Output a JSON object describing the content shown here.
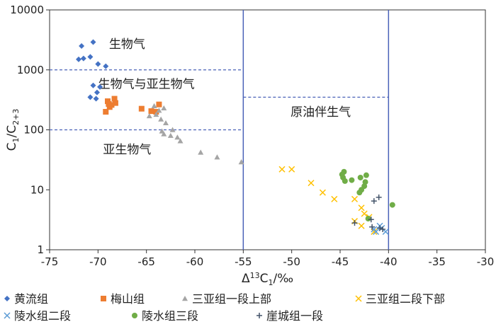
{
  "chart_data": {
    "type": "scatter",
    "xlabel": "Δ13C1/‰",
    "ylabel": "C1/C2+3",
    "xlim": [
      -75,
      -30
    ],
    "ylim": [
      1,
      10000
    ],
    "yscale": "log",
    "x_ticks": [
      "-75",
      "-70",
      "-65",
      "-60",
      "-55",
      "-50",
      "-45",
      "-40",
      "-35",
      "-30"
    ],
    "y_ticks": [
      "1",
      "10",
      "100",
      "1000",
      "10000"
    ],
    "grid": false,
    "legend_position": "bottom",
    "regions": [
      {
        "label": "生物气",
        "x": -67,
        "y": 2300
      },
      {
        "label": "生物气与亚生物气",
        "x": -65,
        "y": 500
      },
      {
        "label": "亚生物气",
        "x": -67,
        "y": 40
      },
      {
        "label": "原油伴生气",
        "x": -47,
        "y": 170
      }
    ],
    "boundaries": [
      {
        "type": "vline",
        "x": -55,
        "style": "solid"
      },
      {
        "type": "vline",
        "x": -40,
        "style": "solid"
      },
      {
        "type": "hline",
        "y": 1000,
        "x_from": -75,
        "x_to": -55,
        "style": "dashed"
      },
      {
        "type": "hline",
        "y": 100,
        "x_from": -75,
        "x_to": -55,
        "style": "dashed"
      },
      {
        "type": "hline",
        "y": 350,
        "x_from": -55,
        "x_to": -40,
        "style": "dashed"
      }
    ],
    "series": [
      {
        "name": "黄流组",
        "marker": "diamond",
        "color": "#4472c4",
        "points": [
          [
            -72,
            1500
          ],
          [
            -71.7,
            2500
          ],
          [
            -71.5,
            1550
          ],
          [
            -70.8,
            1650
          ],
          [
            -70.5,
            2900
          ],
          [
            -70,
            1250
          ],
          [
            -69.2,
            1150
          ],
          [
            -70.5,
            550
          ],
          [
            -70.1,
            420
          ],
          [
            -70.8,
            350
          ],
          [
            -70.2,
            330
          ],
          [
            -69.8,
            520
          ]
        ]
      },
      {
        "name": "梅山组",
        "marker": "square",
        "color": "#ed7d31",
        "points": [
          [
            -69,
            300
          ],
          [
            -68.8,
            240
          ],
          [
            -69.2,
            200
          ],
          [
            -68.6,
            260
          ],
          [
            -68.3,
            330
          ],
          [
            -68.2,
            280
          ],
          [
            -68.9,
            270
          ],
          [
            -65.5,
            225
          ],
          [
            -64.5,
            205
          ],
          [
            -64,
            200
          ],
          [
            -63.7,
            265
          ]
        ]
      },
      {
        "name": "三亚组一段上部",
        "marker": "triangle",
        "color": "#a5a5a5",
        "points": [
          [
            -64.7,
            170
          ],
          [
            -64.2,
            250
          ],
          [
            -64,
            180
          ],
          [
            -63.7,
            210
          ],
          [
            -63.2,
            230
          ],
          [
            -63.5,
            150
          ],
          [
            -63,
            130
          ],
          [
            -63.4,
            95
          ],
          [
            -63.2,
            85
          ],
          [
            -62.3,
            100
          ],
          [
            -62.5,
            80
          ],
          [
            -61.8,
            75
          ],
          [
            -61.5,
            65
          ],
          [
            -59.4,
            42
          ],
          [
            -57.7,
            35
          ],
          [
            -55.2,
            29
          ]
        ]
      },
      {
        "name": "三亚组二段下部",
        "marker": "x",
        "color": "#ffc000",
        "points": [
          [
            -51,
            22
          ],
          [
            -50,
            22
          ],
          [
            -48,
            13
          ],
          [
            -46.8,
            9
          ],
          [
            -45.6,
            7
          ],
          [
            -43.5,
            7
          ],
          [
            -42.8,
            5
          ],
          [
            -42.5,
            4
          ],
          [
            -42,
            3.5
          ],
          [
            -43.5,
            3
          ],
          [
            -42.8,
            2.5
          ],
          [
            -41.5,
            2
          ]
        ]
      },
      {
        "name": "陵水组二段",
        "marker": "x",
        "color": "#5b9bd5",
        "points": [
          [
            -41.5,
            2.2
          ],
          [
            -41.3,
            2
          ],
          [
            -40.9,
            2.5
          ],
          [
            -40.7,
            2.3
          ],
          [
            -40.3,
            2
          ]
        ]
      },
      {
        "name": "陵水组三段",
        "marker": "circle",
        "color": "#70ad47",
        "points": [
          [
            -44.8,
            18
          ],
          [
            -44.6,
            20
          ],
          [
            -44.5,
            14
          ],
          [
            -44.7,
            16
          ],
          [
            -43.8,
            14.5
          ],
          [
            -42.9,
            16
          ],
          [
            -42.3,
            17.5
          ],
          [
            -42.4,
            13.5
          ],
          [
            -42.5,
            11.5
          ],
          [
            -42.8,
            10
          ],
          [
            -43,
            9
          ],
          [
            -42.1,
            3.3
          ],
          [
            -39.6,
            5.6
          ]
        ]
      },
      {
        "name": "崖城组一段",
        "marker": "plus",
        "color": "#44546a",
        "points": [
          [
            -43.5,
            2.8
          ],
          [
            -41.8,
            3.2
          ],
          [
            -41.5,
            6.5
          ],
          [
            -41,
            7.5
          ],
          [
            -40.9,
            2.3
          ],
          [
            -40.6,
            2.2
          ],
          [
            -41.7,
            2.4
          ]
        ]
      }
    ]
  }
}
